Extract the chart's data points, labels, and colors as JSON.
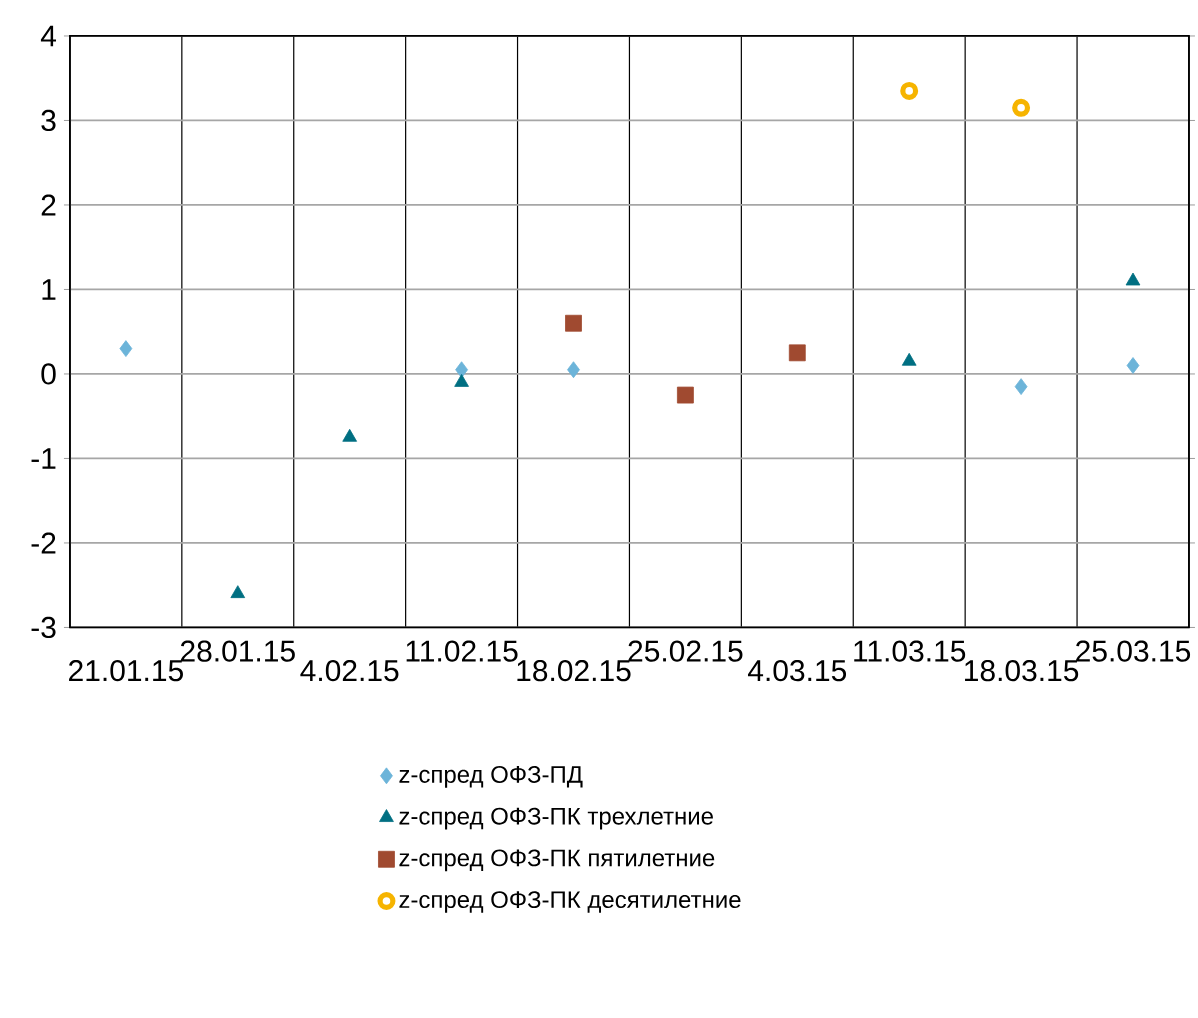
{
  "chart_data": {
    "type": "scatter",
    "categories": [
      "21.01.15",
      "28.01.15",
      "4.02.15",
      "11.02.15",
      "18.02.15",
      "25.02.15",
      "4.03.15",
      "11.03.15",
      "18.03.15",
      "25.03.15"
    ],
    "series": [
      {
        "name": "z-спред ОФЗ-ПД",
        "color": "#6cb4d9",
        "marker": "diamond",
        "values": [
          0.3,
          null,
          null,
          0.05,
          0.05,
          null,
          null,
          null,
          -0.15,
          0.1
        ]
      },
      {
        "name": "z-спред ОФЗ-ПК трехлетние",
        "color": "#006f82",
        "marker": "triangle",
        "values": [
          null,
          -2.6,
          -0.75,
          -0.1,
          null,
          null,
          null,
          0.15,
          null,
          1.1
        ]
      },
      {
        "name": "z-спред ОФЗ-ПК пятилетние",
        "color": "#a04a30",
        "marker": "square",
        "values": [
          null,
          null,
          null,
          null,
          0.6,
          -0.25,
          0.25,
          null,
          null,
          null
        ]
      },
      {
        "name": "z-спред ОФЗ-ПК десятилетние",
        "color": "#f6b400",
        "marker": "circle",
        "values": [
          null,
          null,
          null,
          null,
          null,
          null,
          null,
          3.35,
          3.15,
          null
        ]
      }
    ],
    "ylim": [
      -3,
      4
    ],
    "yticks": [
      -3,
      -2,
      -1,
      0,
      1,
      2,
      3,
      4
    ],
    "grid": true,
    "legend": "bottom"
  }
}
